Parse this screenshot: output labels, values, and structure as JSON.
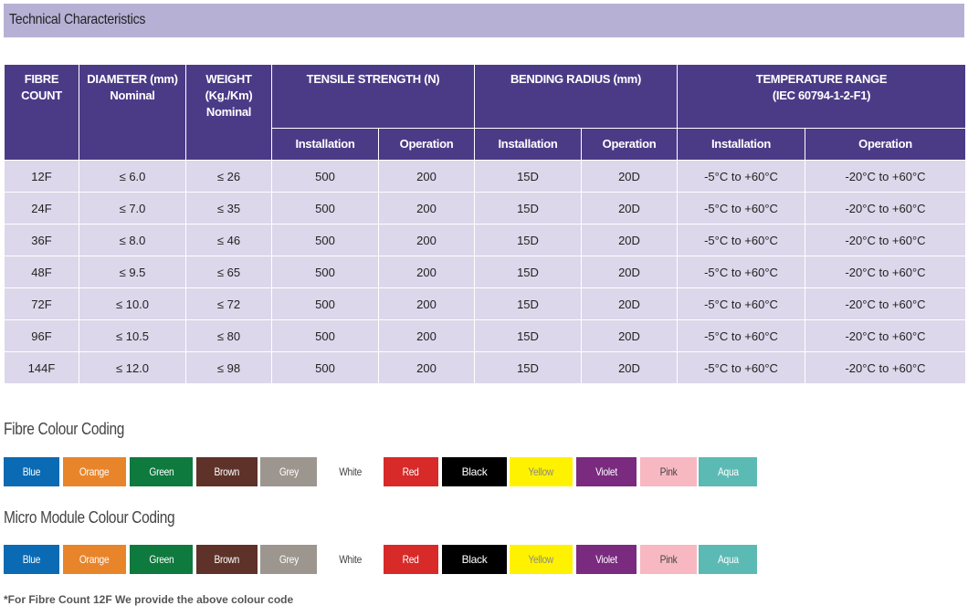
{
  "section_title": "Technical Characteristics",
  "table": {
    "headers_top": [
      {
        "lines": [
          "FIBRE",
          "COUNT"
        ]
      },
      {
        "lines": [
          "DIAMETER (mm)",
          "Nominal"
        ]
      },
      {
        "lines": [
          "WEIGHT",
          "(Kg./Km)",
          "Nominal"
        ]
      },
      {
        "lines": [
          "TENSILE STRENGTH (N)"
        ]
      },
      {
        "lines": [
          "BENDING RADIUS (mm)"
        ]
      },
      {
        "lines": [
          "TEMPERATURE RANGE",
          "(IEC 60794-1-2-F1)"
        ]
      }
    ],
    "headers_sub": [
      "Installation",
      "Operation",
      "Installation",
      "Operation",
      "Installation",
      "Operation"
    ],
    "rows": [
      [
        "12F",
        "≤ 6.0",
        "≤ 26",
        "500",
        "200",
        "15D",
        "20D",
        "-5°C to +60°C",
        "-20°C to +60°C"
      ],
      [
        "24F",
        "≤ 7.0",
        "≤ 35",
        "500",
        "200",
        "15D",
        "20D",
        "-5°C to +60°C",
        "-20°C to +60°C"
      ],
      [
        "36F",
        "≤ 8.0",
        "≤ 46",
        "500",
        "200",
        "15D",
        "20D",
        "-5°C to +60°C",
        "-20°C to +60°C"
      ],
      [
        "48F",
        "≤ 9.5",
        "≤ 65",
        "500",
        "200",
        "15D",
        "20D",
        "-5°C to +60°C",
        "-20°C to +60°C"
      ],
      [
        "72F",
        "≤ 10.0",
        "≤ 72",
        "500",
        "200",
        "15D",
        "20D",
        "-5°C to +60°C",
        "-20°C to +60°C"
      ],
      [
        "96F",
        "≤ 10.5",
        "≤ 80",
        "500",
        "200",
        "15D",
        "20D",
        "-5°C to +60°C",
        "-20°C to +60°C"
      ],
      [
        "144F",
        "≤ 12.0",
        "≤ 98",
        "500",
        "200",
        "15D",
        "20D",
        "-5°C to +60°C",
        "-20°C to +60°C"
      ]
    ]
  },
  "fibre_colour_title": "Fibre Colour Coding",
  "micro_module_colour_title": "Micro Module Colour Coding",
  "colours": [
    {
      "label": "Blue",
      "bg": "#0a6ab4",
      "fg": "#ffffff"
    },
    {
      "label": "Orange",
      "bg": "#e8852b",
      "fg": "#ffffff"
    },
    {
      "label": "Green",
      "bg": "#0e7a3e",
      "fg": "#ffffff"
    },
    {
      "label": "Brown",
      "bg": "#5e3228",
      "fg": "#ffffff"
    },
    {
      "label": "Grey",
      "bg": "#9c968f",
      "fg": "#ffffff"
    },
    {
      "label": "White",
      "bg": "#ffffff",
      "fg": "#444444"
    },
    {
      "label": "Red",
      "bg": "#d72a29",
      "fg": "#ffffff"
    },
    {
      "label": "Black",
      "bg": "#000000",
      "fg": "#ffffff"
    },
    {
      "label": "Yellow",
      "bg": "#fff200",
      "fg": "#8a8a8a"
    },
    {
      "label": "Violet",
      "bg": "#7a2a7f",
      "fg": "#ffffff"
    },
    {
      "label": "Pink",
      "bg": "#f7b8c2",
      "fg": "#444444"
    },
    {
      "label": "Aqua",
      "bg": "#5cbab4",
      "fg": "#ffffff"
    }
  ],
  "footnote": "*For Fibre Count 12F We provide the above colour code"
}
